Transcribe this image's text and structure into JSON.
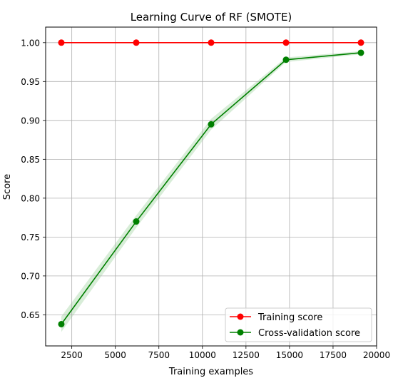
{
  "chart_data": {
    "type": "line",
    "title": "Learning Curve of RF (SMOTE)",
    "xlabel": "Training examples",
    "ylabel": "Score",
    "xlim": [
      1000,
      20000
    ],
    "ylim": [
      0.61,
      1.02
    ],
    "xticks": [
      2500,
      5000,
      7500,
      10000,
      12500,
      15000,
      17500,
      20000
    ],
    "xtick_labels": [
      "2500",
      "5000",
      "7500",
      "10000",
      "12500",
      "15000",
      "17500",
      "20000"
    ],
    "yticks": [
      0.65,
      0.7,
      0.75,
      0.8,
      0.85,
      0.9,
      0.95,
      1.0
    ],
    "ytick_labels": [
      "0.65",
      "0.70",
      "0.75",
      "0.80",
      "0.85",
      "0.90",
      "0.95",
      "1.00"
    ],
    "grid": true,
    "legend_position": "lower-right",
    "x": [
      1900,
      6200,
      10500,
      14800,
      19100
    ],
    "series": [
      {
        "name": "Training score",
        "color": "#ff0000",
        "values": [
          1.0,
          1.0,
          1.0,
          1.0,
          1.0
        ],
        "band_lower": [
          1.0,
          1.0,
          1.0,
          1.0,
          1.0
        ],
        "band_upper": [
          1.0,
          1.0,
          1.0,
          1.0,
          1.0
        ]
      },
      {
        "name": "Cross-validation score",
        "color": "#008000",
        "band_color": "#c8e6c8",
        "values": [
          0.638,
          0.77,
          0.895,
          0.978,
          0.987
        ],
        "band_lower": [
          0.628,
          0.762,
          0.888,
          0.975,
          0.985
        ],
        "band_upper": [
          0.648,
          0.778,
          0.902,
          0.981,
          0.989
        ]
      }
    ]
  }
}
